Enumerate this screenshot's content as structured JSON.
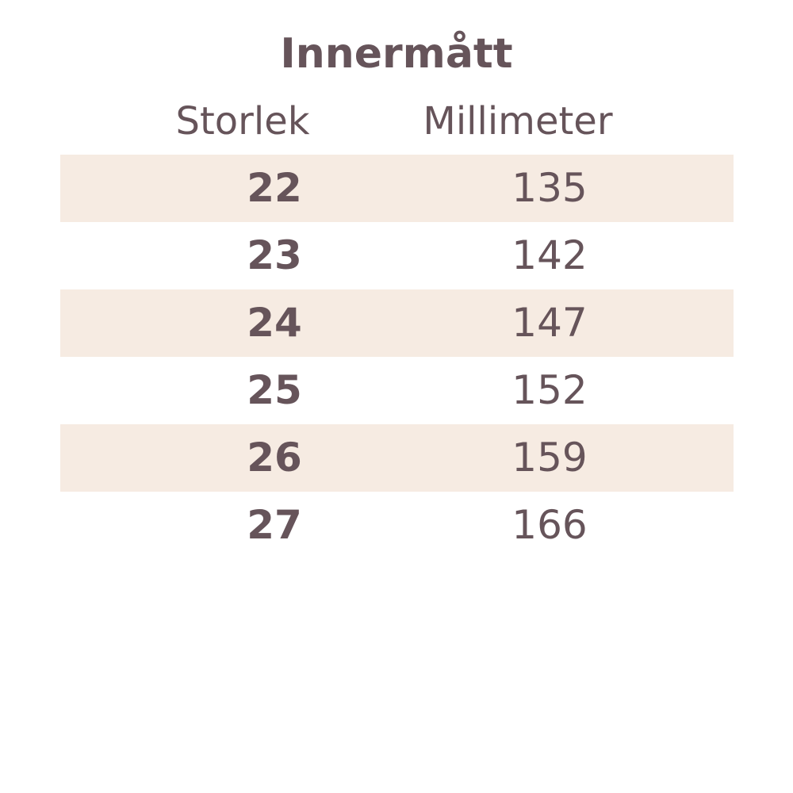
{
  "title": "Innermått",
  "headers": [
    "Storlek",
    "Millimeter"
  ],
  "colors": {
    "text": "#66545a",
    "band": "#f6ebe2"
  },
  "rows": [
    {
      "size": "22",
      "mm": "135"
    },
    {
      "size": "23",
      "mm": "142"
    },
    {
      "size": "24",
      "mm": "147"
    },
    {
      "size": "25",
      "mm": "152"
    },
    {
      "size": "26",
      "mm": "159"
    },
    {
      "size": "27",
      "mm": "166"
    }
  ]
}
